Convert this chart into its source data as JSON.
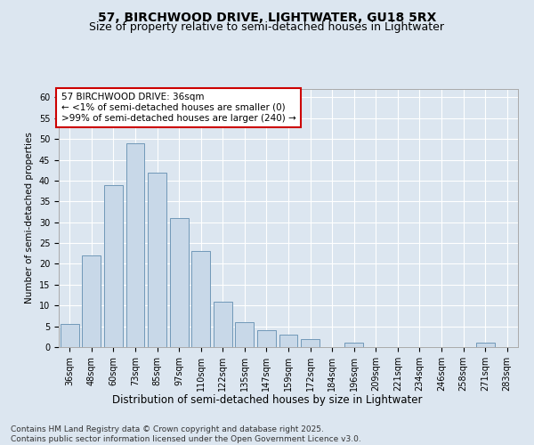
{
  "title": "57, BIRCHWOOD DRIVE, LIGHTWATER, GU18 5RX",
  "subtitle": "Size of property relative to semi-detached houses in Lightwater",
  "xlabel": "Distribution of semi-detached houses by size in Lightwater",
  "ylabel": "Number of semi-detached properties",
  "categories": [
    "36sqm",
    "48sqm",
    "60sqm",
    "73sqm",
    "85sqm",
    "97sqm",
    "110sqm",
    "122sqm",
    "135sqm",
    "147sqm",
    "159sqm",
    "172sqm",
    "184sqm",
    "196sqm",
    "209sqm",
    "221sqm",
    "234sqm",
    "246sqm",
    "258sqm",
    "271sqm",
    "283sqm"
  ],
  "values": [
    5.5,
    22,
    39,
    49,
    42,
    31,
    23,
    11,
    6,
    4,
    3,
    2,
    0,
    1,
    0,
    0,
    0,
    0,
    0,
    1,
    0
  ],
  "bar_color": "#c8d8e8",
  "bar_edge_color": "#7098b8",
  "annotation_box_text": "57 BIRCHWOOD DRIVE: 36sqm\n← <1% of semi-detached houses are smaller (0)\n>99% of semi-detached houses are larger (240) →",
  "annotation_box_color": "#ffffff",
  "annotation_box_edge_color": "#cc0000",
  "ylim": [
    0,
    62
  ],
  "yticks": [
    0,
    5,
    10,
    15,
    20,
    25,
    30,
    35,
    40,
    45,
    50,
    55,
    60
  ],
  "background_color": "#dce6f0",
  "plot_background_color": "#dce6f0",
  "grid_color": "#ffffff",
  "footer_text": "Contains HM Land Registry data © Crown copyright and database right 2025.\nContains public sector information licensed under the Open Government Licence v3.0.",
  "title_fontsize": 10,
  "subtitle_fontsize": 9,
  "xlabel_fontsize": 8.5,
  "ylabel_fontsize": 7.5,
  "tick_fontsize": 7,
  "annotation_fontsize": 7.5,
  "footer_fontsize": 6.5
}
